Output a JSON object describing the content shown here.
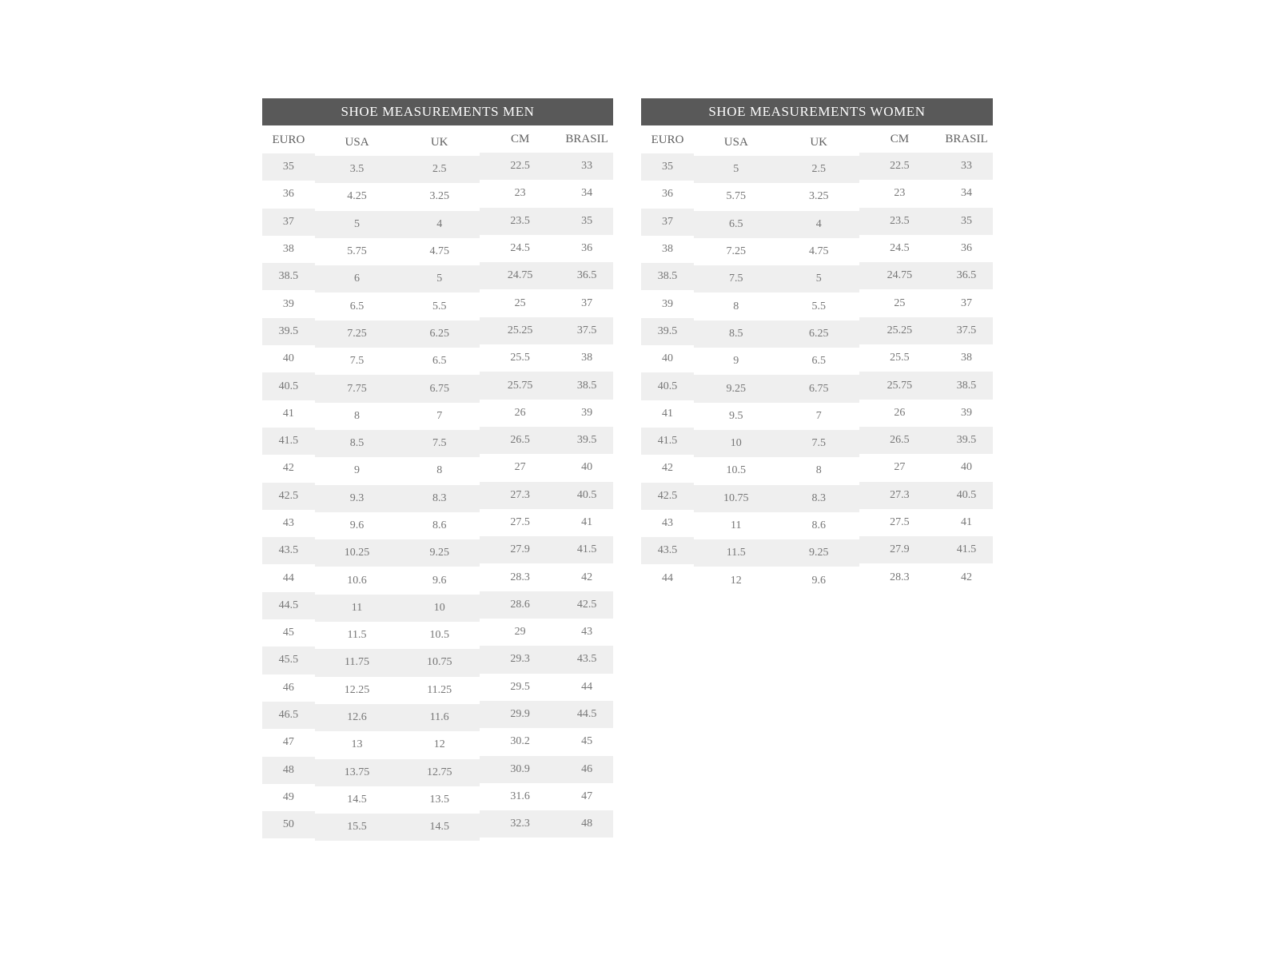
{
  "colors": {
    "title_bar_bg": "#595959",
    "title_text": "#fdfdfd",
    "column_header_text": "#606060",
    "cell_text": "#767676",
    "stripe_row_bg": "#efefef",
    "plain_row_bg": "#ffffff",
    "page_bg": "#ffffff"
  },
  "men_table": {
    "title": "SHOE MEASUREMENTS MEN",
    "columns": [
      "EURO",
      "USA",
      "UK",
      "CM",
      "BRASIL"
    ],
    "rows": [
      [
        "35",
        "3.5",
        "2.5",
        "22.5",
        "33"
      ],
      [
        "36",
        "4.25",
        "3.25",
        "23",
        "34"
      ],
      [
        "37",
        "5",
        "4",
        "23.5",
        "35"
      ],
      [
        "38",
        "5.75",
        "4.75",
        "24.5",
        "36"
      ],
      [
        "38.5",
        "6",
        "5",
        "24.75",
        "36.5"
      ],
      [
        "39",
        "6.5",
        "5.5",
        "25",
        "37"
      ],
      [
        "39.5",
        "7.25",
        "6.25",
        "25.25",
        "37.5"
      ],
      [
        "40",
        "7.5",
        "6.5",
        "25.5",
        "38"
      ],
      [
        "40.5",
        "7.75",
        "6.75",
        "25.75",
        "38.5"
      ],
      [
        "41",
        "8",
        "7",
        "26",
        "39"
      ],
      [
        "41.5",
        "8.5",
        "7.5",
        "26.5",
        "39.5"
      ],
      [
        "42",
        "9",
        "8",
        "27",
        "40"
      ],
      [
        "42.5",
        "9.3",
        "8.3",
        "27.3",
        "40.5"
      ],
      [
        "43",
        "9.6",
        "8.6",
        "27.5",
        "41"
      ],
      [
        "43.5",
        "10.25",
        "9.25",
        "27.9",
        "41.5"
      ],
      [
        "44",
        "10.6",
        "9.6",
        "28.3",
        "42"
      ],
      [
        "44.5",
        "11",
        "10",
        "28.6",
        "42.5"
      ],
      [
        "45",
        "11.5",
        "10.5",
        "29",
        "43"
      ],
      [
        "45.5",
        "11.75",
        "10.75",
        "29.3",
        "43.5"
      ],
      [
        "46",
        "12.25",
        "11.25",
        "29.5",
        "44"
      ],
      [
        "46.5",
        "12.6",
        "11.6",
        "29.9",
        "44.5"
      ],
      [
        "47",
        "13",
        "12",
        "30.2",
        "45"
      ],
      [
        "48",
        "13.75",
        "12.75",
        "30.9",
        "46"
      ],
      [
        "49",
        "14.5",
        "13.5",
        "31.6",
        "47"
      ],
      [
        "50",
        "15.5",
        "14.5",
        "32.3",
        "48"
      ]
    ]
  },
  "women_table": {
    "title": "SHOE MEASUREMENTS WOMEN",
    "columns": [
      "EURO",
      "USA",
      "UK",
      "CM",
      "BRASIL"
    ],
    "rows": [
      [
        "35",
        "5",
        "2.5",
        "22.5",
        "33"
      ],
      [
        "36",
        "5.75",
        "3.25",
        "23",
        "34"
      ],
      [
        "37",
        "6.5",
        "4",
        "23.5",
        "35"
      ],
      [
        "38",
        "7.25",
        "4.75",
        "24.5",
        "36"
      ],
      [
        "38.5",
        "7.5",
        "5",
        "24.75",
        "36.5"
      ],
      [
        "39",
        "8",
        "5.5",
        "25",
        "37"
      ],
      [
        "39.5",
        "8.5",
        "6.25",
        "25.25",
        "37.5"
      ],
      [
        "40",
        "9",
        "6.5",
        "25.5",
        "38"
      ],
      [
        "40.5",
        "9.25",
        "6.75",
        "25.75",
        "38.5"
      ],
      [
        "41",
        "9.5",
        "7",
        "26",
        "39"
      ],
      [
        "41.5",
        "10",
        "7.5",
        "26.5",
        "39.5"
      ],
      [
        "42",
        "10.5",
        "8",
        "27",
        "40"
      ],
      [
        "42.5",
        "10.75",
        "8.3",
        "27.3",
        "40.5"
      ],
      [
        "43",
        "11",
        "8.6",
        "27.5",
        "41"
      ],
      [
        "43.5",
        "11.5",
        "9.25",
        "27.9",
        "41.5"
      ],
      [
        "44",
        "12",
        "9.6",
        "28.3",
        "42"
      ]
    ]
  }
}
